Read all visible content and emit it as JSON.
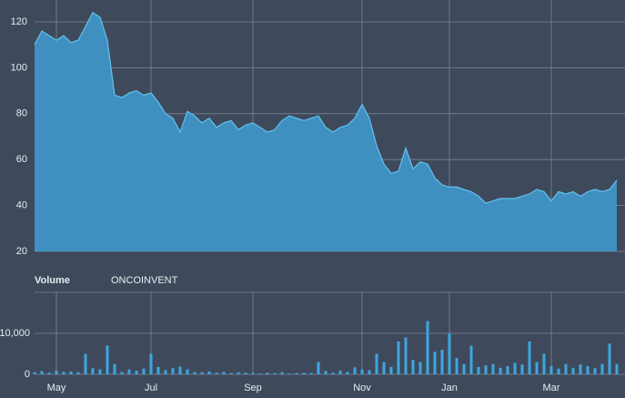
{
  "chart_data": [
    {
      "type": "area",
      "color": "#3f94c6",
      "line_color": "#62c2ee",
      "values": [
        110,
        116,
        114,
        112,
        114,
        111,
        112,
        118,
        124,
        122,
        112,
        88,
        87,
        89,
        90,
        88,
        89,
        85,
        80,
        78,
        72,
        81,
        79,
        76,
        78,
        74,
        76,
        77,
        73,
        75,
        76,
        74,
        72,
        73,
        77,
        79,
        78,
        77,
        78,
        79,
        74,
        72,
        74,
        75,
        78,
        84,
        78,
        66,
        58,
        54,
        55,
        65,
        56,
        59,
        58,
        52,
        49,
        48,
        48,
        47,
        46,
        44,
        41,
        42,
        43,
        43,
        43,
        44,
        45,
        47,
        46,
        42,
        46,
        45,
        46,
        44,
        46,
        47,
        46,
        47,
        51
      ],
      "ylim": [
        20,
        130
      ],
      "yticks": [
        20,
        40,
        60,
        80,
        100,
        120
      ],
      "grid": true
    },
    {
      "type": "bar",
      "title": "Volume",
      "subtitle": "ONCOINVENT",
      "color": "#3ea6de",
      "categories": [
        null,
        null,
        null,
        "May",
        null,
        null,
        null,
        null,
        null,
        null,
        null,
        null,
        null,
        null,
        null,
        null,
        "Jul",
        null,
        null,
        null,
        null,
        null,
        null,
        null,
        null,
        null,
        null,
        null,
        null,
        null,
        "Sep",
        null,
        null,
        null,
        null,
        null,
        null,
        null,
        null,
        null,
        null,
        null,
        null,
        null,
        null,
        "Nov",
        null,
        null,
        null,
        null,
        null,
        null,
        null,
        null,
        null,
        null,
        null,
        "Jan",
        null,
        null,
        null,
        null,
        null,
        null,
        null,
        null,
        null,
        null,
        null,
        null,
        null,
        "Mar",
        null,
        null,
        null,
        null,
        null,
        null,
        null,
        null,
        null
      ],
      "values": [
        500,
        800,
        400,
        900,
        600,
        700,
        500,
        5000,
        1500,
        1200,
        7000,
        2500,
        600,
        1200,
        900,
        1400,
        5000,
        1800,
        1000,
        1500,
        1900,
        1200,
        600,
        500,
        700,
        400,
        600,
        300,
        500,
        400,
        300,
        200,
        400,
        300,
        500,
        200,
        300,
        400,
        300,
        3000,
        800,
        400,
        900,
        600,
        1700,
        1200,
        1000,
        5000,
        3000,
        1800,
        8000,
        9000,
        3500,
        3000,
        13000,
        5500,
        6000,
        10000,
        4000,
        2500,
        7000,
        1800,
        2200,
        2500,
        1600,
        2000,
        2800,
        2400,
        8000,
        3000,
        5000,
        2000,
        1400,
        2500,
        1600,
        2400,
        2000,
        1500,
        2500,
        7500,
        2500
      ],
      "ylim": [
        0,
        20000
      ],
      "yticks": [
        0,
        {
          "value": 10000,
          "label": "10,000"
        }
      ],
      "grid": true
    }
  ]
}
